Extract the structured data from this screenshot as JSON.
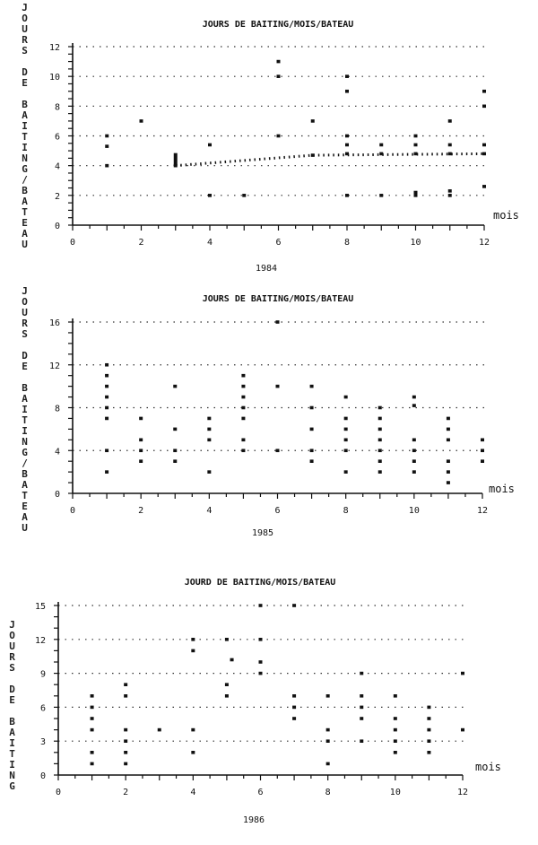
{
  "chart_data": [
    {
      "type": "scatter",
      "title": "JOURS DE BAITING/MOIS/BATEAU",
      "ylabel": "JOURS DE BAITING/BATEAU",
      "xlabel": "mois",
      "year_label": "1984",
      "xlim": [
        0,
        12
      ],
      "ylim": [
        0,
        12
      ],
      "xticks": [
        0,
        2,
        4,
        6,
        8,
        10,
        12
      ],
      "yticks": [
        0,
        2,
        4,
        6,
        8,
        10,
        12
      ],
      "grid": "dotted horizontal",
      "points": [
        [
          1,
          6
        ],
        [
          1,
          5.3
        ],
        [
          1,
          4
        ],
        [
          2,
          7
        ],
        [
          3,
          4
        ],
        [
          4,
          5.4
        ],
        [
          4,
          2
        ],
        [
          5,
          2
        ],
        [
          6,
          11
        ],
        [
          6,
          10
        ],
        [
          6,
          6
        ],
        [
          7,
          7
        ],
        [
          7,
          4.7
        ],
        [
          8,
          10
        ],
        [
          8,
          9
        ],
        [
          8,
          6
        ],
        [
          8,
          5.4
        ],
        [
          8,
          4.8
        ],
        [
          8,
          2
        ],
        [
          9,
          5.4
        ],
        [
          9,
          4.8
        ],
        [
          9,
          2
        ],
        [
          10,
          6
        ],
        [
          10,
          5.4
        ],
        [
          10,
          4.8
        ],
        [
          10,
          2.2
        ],
        [
          10,
          2
        ],
        [
          11,
          7
        ],
        [
          11,
          5.4
        ],
        [
          11,
          4.8
        ],
        [
          11,
          2.3
        ],
        [
          11,
          2
        ],
        [
          12,
          9
        ],
        [
          12,
          8
        ],
        [
          12,
          5.4
        ],
        [
          12,
          4.8
        ],
        [
          12,
          2.6
        ]
      ],
      "trend": [
        [
          3,
          4
        ],
        [
          7,
          4.7
        ],
        [
          12,
          4.8
        ]
      ]
    },
    {
      "type": "scatter",
      "title": "JOURS DE BAITING/MOIS/BATEAU",
      "ylabel": "JOURS DE BAITING/BATEAU",
      "xlabel": "mois",
      "year_label": "1985",
      "xlim": [
        0,
        12
      ],
      "ylim": [
        0,
        16
      ],
      "xticks": [
        0,
        2,
        4,
        6,
        8,
        10,
        12
      ],
      "yticks": [
        0,
        4,
        8,
        12,
        16
      ],
      "grid": "dotted horizontal",
      "points": [
        [
          1,
          12
        ],
        [
          1,
          11
        ],
        [
          1,
          10
        ],
        [
          1,
          9
        ],
        [
          1,
          8
        ],
        [
          1,
          7
        ],
        [
          1,
          4
        ],
        [
          1,
          2
        ],
        [
          2,
          7
        ],
        [
          2,
          5
        ],
        [
          2,
          4
        ],
        [
          2,
          3
        ],
        [
          3,
          10
        ],
        [
          3,
          6
        ],
        [
          3,
          4
        ],
        [
          3,
          3
        ],
        [
          4,
          7
        ],
        [
          4,
          6
        ],
        [
          4,
          5
        ],
        [
          4,
          2
        ],
        [
          5,
          11
        ],
        [
          5,
          10
        ],
        [
          5,
          9
        ],
        [
          5,
          8
        ],
        [
          5,
          7
        ],
        [
          5,
          5
        ],
        [
          5,
          4
        ],
        [
          6,
          16
        ],
        [
          6,
          10
        ],
        [
          6,
          4
        ],
        [
          7,
          10
        ],
        [
          7,
          8
        ],
        [
          7,
          6
        ],
        [
          7,
          4
        ],
        [
          7,
          3
        ],
        [
          8,
          9
        ],
        [
          8,
          7
        ],
        [
          8,
          6
        ],
        [
          8,
          5
        ],
        [
          8,
          4
        ],
        [
          8,
          2
        ],
        [
          9,
          8
        ],
        [
          9,
          7
        ],
        [
          9,
          6
        ],
        [
          9,
          5
        ],
        [
          9,
          4
        ],
        [
          9,
          3
        ],
        [
          9,
          2
        ],
        [
          10,
          9
        ],
        [
          10,
          8.2
        ],
        [
          10,
          5
        ],
        [
          10,
          4
        ],
        [
          10,
          3
        ],
        [
          10,
          2
        ],
        [
          11,
          7
        ],
        [
          11,
          6
        ],
        [
          11,
          5
        ],
        [
          11,
          3
        ],
        [
          11,
          2
        ],
        [
          11,
          1
        ],
        [
          12,
          5
        ],
        [
          12,
          4
        ],
        [
          12,
          3
        ]
      ]
    },
    {
      "type": "scatter",
      "title": "JOURD DE BAITING/MOIS/BATEAU",
      "ylabel": "JOURS DE BAITING",
      "xlabel": "mois",
      "year_label": "1986",
      "xlim": [
        0,
        12
      ],
      "ylim": [
        0,
        15
      ],
      "xticks": [
        0,
        2,
        4,
        6,
        8,
        10,
        12
      ],
      "yticks": [
        0,
        3,
        6,
        9,
        12,
        15
      ],
      "grid": "dotted horizontal",
      "points": [
        [
          1,
          7
        ],
        [
          1,
          6
        ],
        [
          1,
          5
        ],
        [
          1,
          4
        ],
        [
          1,
          2
        ],
        [
          1,
          1
        ],
        [
          2,
          8
        ],
        [
          2,
          7
        ],
        [
          2,
          4
        ],
        [
          2,
          3
        ],
        [
          2,
          2
        ],
        [
          2,
          1
        ],
        [
          3,
          4
        ],
        [
          4,
          12
        ],
        [
          4,
          11
        ],
        [
          4,
          4
        ],
        [
          4,
          2
        ],
        [
          5,
          12
        ],
        [
          5,
          8
        ],
        [
          5,
          7
        ],
        [
          5.15,
          10.2
        ],
        [
          6,
          15
        ],
        [
          6,
          12
        ],
        [
          6,
          10
        ],
        [
          6,
          9
        ],
        [
          7,
          15
        ],
        [
          7,
          7
        ],
        [
          7,
          6
        ],
        [
          7,
          5
        ],
        [
          8,
          7
        ],
        [
          8,
          4
        ],
        [
          8,
          3
        ],
        [
          8,
          1
        ],
        [
          9,
          9
        ],
        [
          9,
          7
        ],
        [
          9,
          6
        ],
        [
          9,
          5
        ],
        [
          9,
          3
        ],
        [
          10,
          7
        ],
        [
          10,
          5
        ],
        [
          10,
          4
        ],
        [
          10,
          3
        ],
        [
          10,
          2
        ],
        [
          11,
          6
        ],
        [
          11,
          5
        ],
        [
          11,
          4
        ],
        [
          11,
          3
        ],
        [
          11,
          2
        ],
        [
          12,
          9
        ],
        [
          12,
          4
        ]
      ]
    }
  ]
}
